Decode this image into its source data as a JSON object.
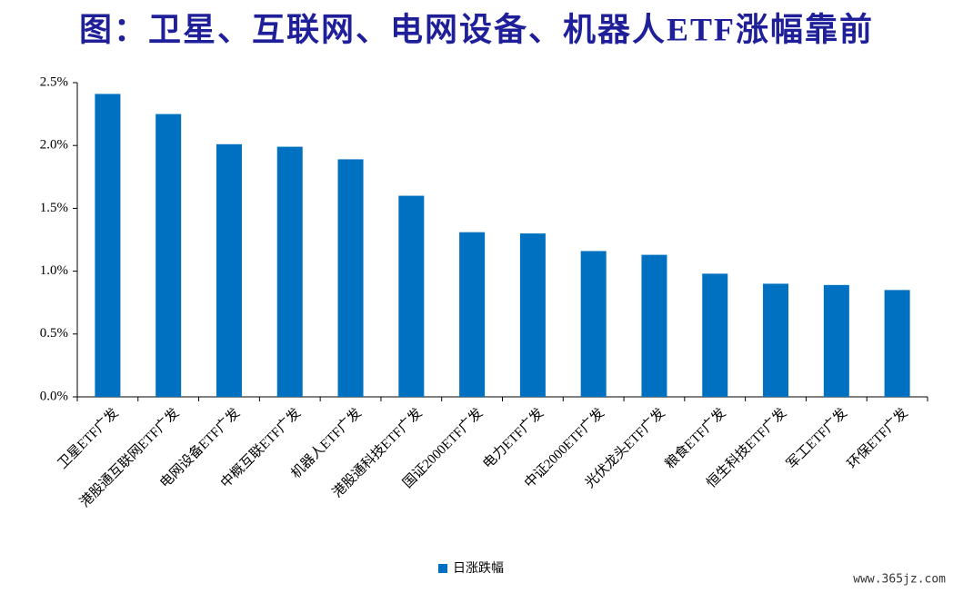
{
  "chart_data": {
    "type": "bar",
    "title": "图：卫星、互联网、电网设备、机器人ETF涨幅靠前",
    "categories": [
      "卫星ETF广发",
      "港股通互联网ETF广发",
      "电网设备ETF广发",
      "中概互联ETF广发",
      "机器人ETF广发",
      "港股通科技ETF广发",
      "国证2000ETF广发",
      "电力ETF广发",
      "中证2000ETF广发",
      "光伏龙头ETF广发",
      "粮食ETF广发",
      "恒生科技ETF广发",
      "军工ETF广发",
      "环保ETF广发"
    ],
    "series": [
      {
        "name": "日涨跌幅",
        "color": "#0070c0",
        "values": [
          2.41,
          2.25,
          2.01,
          1.99,
          1.89,
          1.6,
          1.31,
          1.3,
          1.16,
          1.13,
          0.98,
          0.9,
          0.89,
          0.85
        ]
      }
    ],
    "ylim": [
      0,
      2.5
    ],
    "yticks": [
      {
        "value": 0,
        "label": "0.0%"
      },
      {
        "value": 0.5,
        "label": "0.5%"
      },
      {
        "value": 1,
        "label": "1.0%"
      },
      {
        "value": 1.5,
        "label": "1.5%"
      },
      {
        "value": 2,
        "label": "2.0%"
      },
      {
        "value": 2.5,
        "label": "2.5%"
      }
    ],
    "grid": false,
    "legend": "bottom",
    "watermark": "www.365jz.com"
  }
}
